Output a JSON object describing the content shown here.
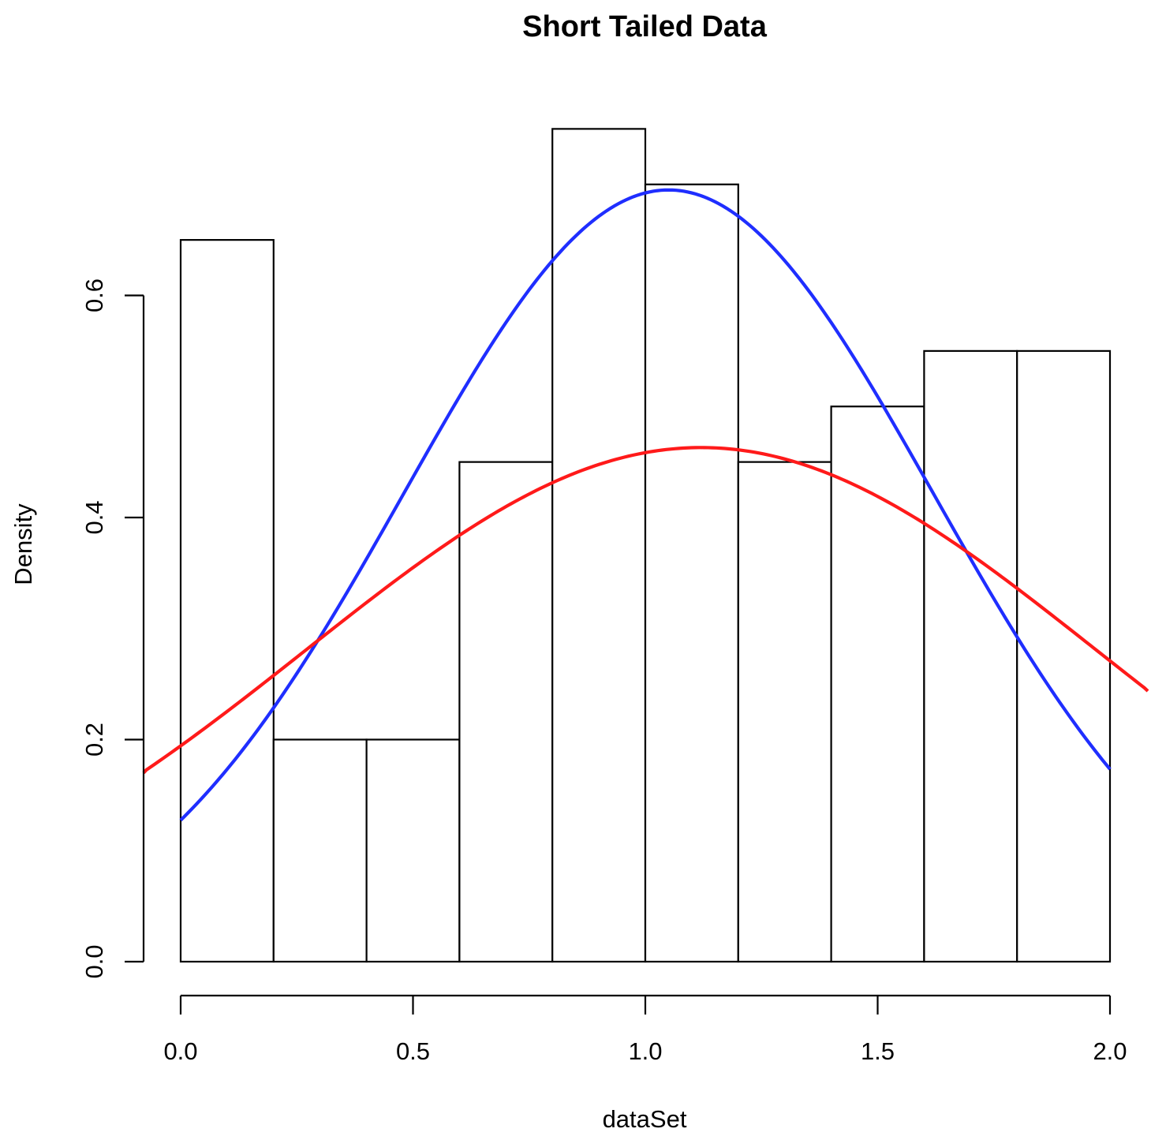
{
  "chart_data": {
    "type": "bar",
    "title": "Short Tailed Data",
    "xlabel": "dataSet",
    "ylabel": "Density",
    "xlim": [
      0,
      2
    ],
    "ylim": [
      0,
      0.75
    ],
    "x_ticks": [
      0.0,
      0.5,
      1.0,
      1.5,
      2.0
    ],
    "x_tick_labels": [
      "0.0",
      "0.5",
      "1.0",
      "1.5",
      "2.0"
    ],
    "y_ticks": [
      0.0,
      0.2,
      0.4,
      0.6
    ],
    "y_tick_labels": [
      "0.0",
      "0.2",
      "0.4",
      "0.6"
    ],
    "grid": false,
    "histogram": {
      "bins": [
        {
          "from": 0.0,
          "to": 0.2,
          "density": 0.65
        },
        {
          "from": 0.2,
          "to": 0.4,
          "density": 0.2
        },
        {
          "from": 0.4,
          "to": 0.6,
          "density": 0.2
        },
        {
          "from": 0.6,
          "to": 0.8,
          "density": 0.45
        },
        {
          "from": 0.8,
          "to": 1.0,
          "density": 0.75
        },
        {
          "from": 1.0,
          "to": 1.2,
          "density": 0.7
        },
        {
          "from": 1.2,
          "to": 1.4,
          "density": 0.45
        },
        {
          "from": 1.4,
          "to": 1.6,
          "density": 0.5
        },
        {
          "from": 1.6,
          "to": 1.8,
          "density": 0.55
        },
        {
          "from": 1.8,
          "to": 2.0,
          "density": 0.55
        }
      ]
    },
    "curves": [
      {
        "color": "#1f2eff",
        "x_range": [
          0.0,
          2.0
        ],
        "mean": 1.05,
        "sd": 0.57,
        "peak": 0.695
      },
      {
        "color": "#ff1a1a",
        "x_range": [
          -0.083,
          2.083
        ],
        "mean": 1.12,
        "sd": 0.85,
        "peak": 0.463
      }
    ]
  }
}
